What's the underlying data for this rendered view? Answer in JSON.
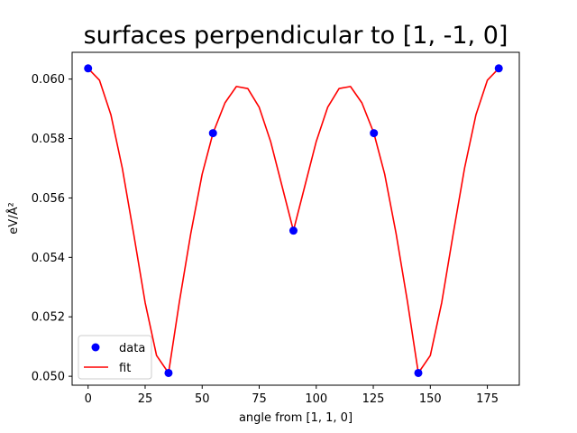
{
  "chart_data": {
    "type": "scatter",
    "title": "surfaces perpendicular to [1, -1, 0]",
    "xlabel": "angle from [1, 1, 0]",
    "ylabel": "eV/Å²",
    "xlim": [
      -7,
      189
    ],
    "ylim": [
      0.0497,
      0.0609
    ],
    "xticks": [
      0,
      25,
      50,
      75,
      100,
      125,
      150,
      175
    ],
    "xtick_labels": [
      "0",
      "25",
      "50",
      "75",
      "100",
      "125",
      "150",
      "175"
    ],
    "yticks": [
      0.05,
      0.052,
      0.054,
      0.056,
      0.058,
      0.06
    ],
    "ytick_labels": [
      "0.050",
      "0.052",
      "0.054",
      "0.056",
      "0.058",
      "0.060"
    ],
    "legend_position": "lower-left",
    "grid": false,
    "series": [
      {
        "name": "data",
        "kind": "points",
        "color": "#0000ff",
        "x": [
          0,
          35.26,
          54.74,
          90,
          125.26,
          144.74,
          180
        ],
        "y": [
          0.06036,
          0.05011,
          0.05818,
          0.0549,
          0.05818,
          0.05011,
          0.06036
        ]
      },
      {
        "name": "fit",
        "kind": "line",
        "color": "#ff0000",
        "x": [
          0,
          5,
          10,
          15,
          20,
          25,
          30,
          35.26,
          40,
          45,
          50,
          54.74,
          60,
          65,
          70,
          75,
          80,
          85,
          90,
          95,
          100,
          105,
          110,
          115,
          120,
          125.26,
          130,
          135,
          140,
          144.74,
          150,
          155,
          160,
          165,
          170,
          175,
          180
        ],
        "y": [
          0.06036,
          0.05996,
          0.0588,
          0.057,
          0.05478,
          0.05248,
          0.0507,
          0.05011,
          0.0525,
          0.0548,
          0.0568,
          0.05818,
          0.0592,
          0.05975,
          0.05968,
          0.05905,
          0.0579,
          0.0564,
          0.0549,
          0.0564,
          0.0579,
          0.05905,
          0.05968,
          0.05975,
          0.0592,
          0.05818,
          0.0568,
          0.0548,
          0.0525,
          0.05011,
          0.0507,
          0.05248,
          0.05478,
          0.057,
          0.0588,
          0.05996,
          0.06036
        ]
      }
    ]
  }
}
